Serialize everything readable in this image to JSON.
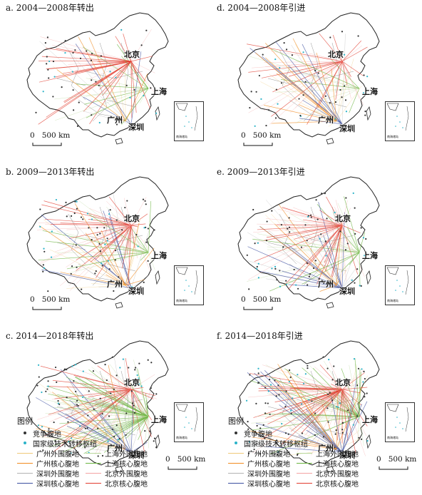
{
  "panels": [
    {
      "id": "a",
      "title": "a. 2004—2008年转出",
      "flow": "out",
      "period": 1
    },
    {
      "id": "d",
      "title": "d. 2004—2008年引进",
      "flow": "in",
      "period": 1
    },
    {
      "id": "b",
      "title": "b. 2009—2013年转出",
      "flow": "out",
      "period": 2
    },
    {
      "id": "e",
      "title": "e. 2009—2013年引进",
      "flow": "in",
      "period": 2
    },
    {
      "id": "c",
      "title": "c. 2014—2018年转出",
      "flow": "out",
      "period": 3
    },
    {
      "id": "f",
      "title": "f. 2014—2018年引进",
      "flow": "in",
      "period": 3
    }
  ],
  "cities": {
    "beijing": "北京",
    "shanghai": "上海",
    "guangzhou": "广州",
    "shenzhen": "深圳"
  },
  "scale_label": "0   500 km",
  "inset_label": "南海诸岛",
  "legend": {
    "title": "图例",
    "points": [
      {
        "label": "竞争腹地",
        "color": "#333333"
      },
      {
        "label": "国家级技术转移枢纽",
        "color": "#2bb3c8"
      }
    ],
    "lines": [
      {
        "label": "广州外围腹地",
        "color": "#f0c97a"
      },
      {
        "label": "上海外围腹地",
        "color": "#b7d79a"
      },
      {
        "label": "广州核心腹地",
        "color": "#f08a1e"
      },
      {
        "label": "上海核心腹地",
        "color": "#6bb43f"
      },
      {
        "label": "深圳外围腹地",
        "color": "#b3b3b3"
      },
      {
        "label": "北京外围腹地",
        "color": "#f4a3a3"
      },
      {
        "label": "深圳核心腹地",
        "color": "#3b4ea0"
      },
      {
        "label": "北京核心腹地",
        "color": "#e23b2e"
      }
    ]
  },
  "colors": {
    "beijing_core": "#e23b2e",
    "beijing_outer": "#f4a3a3",
    "shanghai_core": "#6bb43f",
    "shanghai_outer": "#b7d79a",
    "guangzhou_core": "#f08a1e",
    "guangzhou_outer": "#f0c97a",
    "shenzhen_core": "#3b4ea0",
    "shenzhen_outer": "#b3b3b3",
    "hub": "#2bb3c8",
    "competitive": "#333333"
  }
}
